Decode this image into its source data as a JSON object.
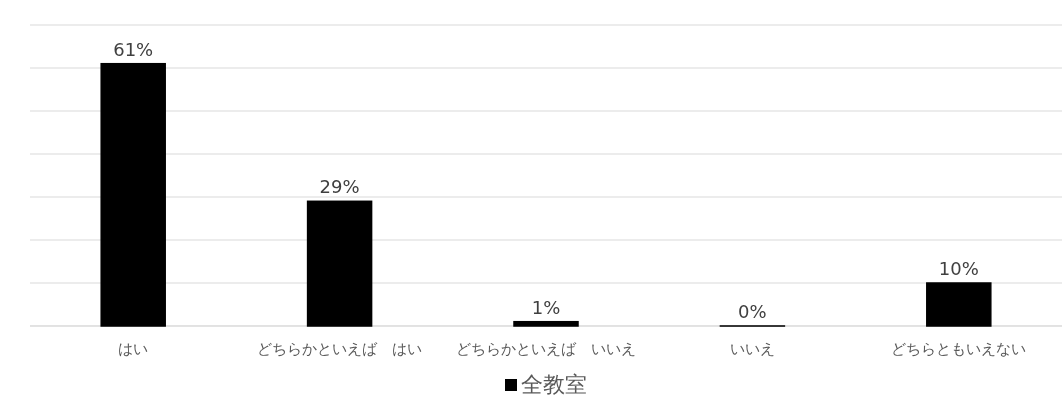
{
  "chart_data": {
    "type": "bar",
    "categories": [
      "はい",
      "どちらかといえば　はい",
      "どちらかといえば　いいえ",
      "いいえ",
      "どちらともいえない"
    ],
    "series": [
      {
        "name": "全教室",
        "color": "#000000",
        "values": [
          61,
          29,
          1,
          0,
          10
        ]
      }
    ],
    "ylim": [
      0,
      70
    ],
    "yticks": [
      {
        "value": 0,
        "label": null
      },
      {
        "value": 10,
        "label": null
      },
      {
        "value": 20,
        "label": null
      },
      {
        "value": 30,
        "label": null
      },
      {
        "value": 40,
        "label": null
      },
      {
        "value": 50,
        "label": null
      },
      {
        "value": 60,
        "label": null
      },
      {
        "value": 70,
        "label": null
      }
    ],
    "value_labels": [
      "61%",
      "29%",
      "1%",
      "0%",
      "10%"
    ],
    "data_labels": true,
    "grid": "y",
    "legend": "bottom",
    "tick_labels": "x"
  }
}
